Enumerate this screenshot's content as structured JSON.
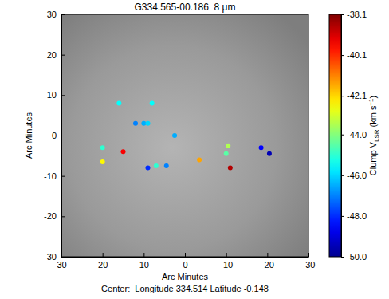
{
  "chart_data": {
    "type": "scatter",
    "title": "G334.565-00.186  8 μm",
    "x_label": "Arc Minutes",
    "y_label": "Arc Minutes",
    "caption": "Center:  Longitude 334.514 Latitude -0.148",
    "x": [
      16,
      8,
      12,
      10,
      9,
      2.5,
      20,
      15,
      20,
      9,
      7,
      4.5,
      -3.5,
      -10.5,
      -10,
      -11,
      -18.5,
      -20.5
    ],
    "values": [
      8,
      8,
      3,
      3,
      3,
      0,
      -3,
      -4,
      -6.5,
      -8,
      -7.5,
      -7.5,
      -6,
      -2.5,
      -4.5,
      -8,
      -3,
      -4.5
    ],
    "v_lsr": [
      -45.5,
      -45.5,
      -47,
      -46.5,
      -46,
      -46.5,
      -45,
      -39.5,
      -42.5,
      -48,
      -45,
      -47,
      -41.5,
      -43.5,
      -44.5,
      -38.7,
      -48.5,
      -49.5
    ],
    "xlim": [
      30,
      -30
    ],
    "xticks": [
      30,
      20,
      10,
      0,
      -10,
      -20,
      -30
    ],
    "ylim": [
      -30,
      30
    ],
    "yticks": [
      -30,
      -20,
      -10,
      0,
      10,
      20,
      30
    ],
    "colorbar": {
      "label": [
        "Clump V",
        "LSR",
        " (km s",
        "−1",
        ")"
      ],
      "range": [
        -50,
        -38.1
      ],
      "ticks": [
        -38.1,
        -40.1,
        -42.1,
        {
          "value": -44,
          "label": "-44.0"
        },
        {
          "value": -46,
          "label": "-46.0"
        },
        {
          "value": -48,
          "label": "-48.0"
        },
        {
          "value": -50,
          "label": "-50.0"
        }
      ]
    },
    "marker": "circle"
  }
}
